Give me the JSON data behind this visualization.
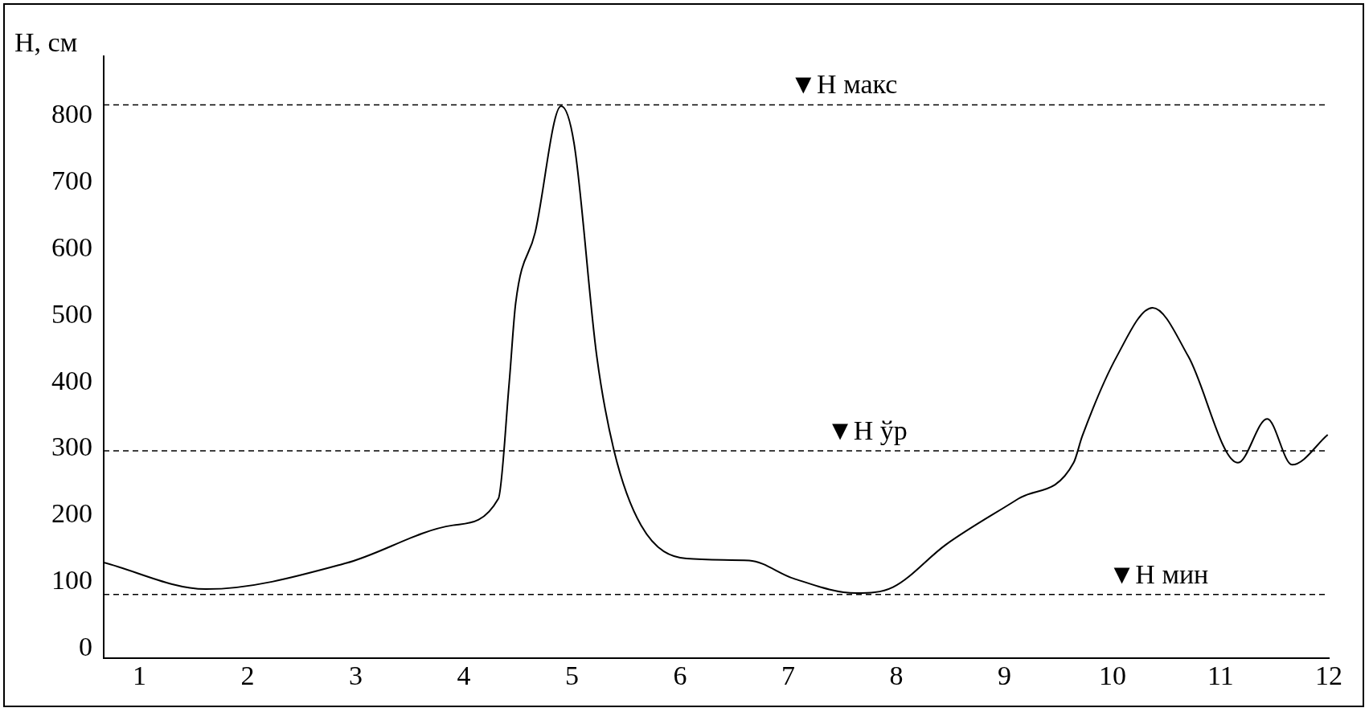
{
  "chart_data": {
    "type": "line",
    "ylabel": "Н, см",
    "x": [
      0.67,
      1.62,
      2.91,
      3.9,
      4.32,
      4.42,
      4.48,
      4.66,
      4.9,
      5.02,
      5.23,
      5.39,
      5.64,
      6.06,
      6.64,
      7.05,
      7.63,
      7.97,
      8.46,
      9.13,
      9.64,
      9.72,
      10.04,
      10.37,
      10.7,
      11.16,
      11.43,
      11.66,
      11.99
    ],
    "series": [
      {
        "color": "#000000",
        "values": [
          129,
          89,
          128,
          185,
          225,
          399,
          519,
          625,
          815,
          759,
          439,
          297,
          185,
          135,
          132,
          105,
          83,
          92,
          156,
          225,
          279,
          319,
          439,
          512,
          439,
          279,
          345,
          276,
          321
        ]
      }
    ],
    "xlim": [
      0.67,
      12
    ],
    "xticks": [
      1,
      2,
      3,
      4,
      5,
      6,
      7,
      8,
      9,
      10,
      11,
      12
    ],
    "ylim": [
      -15,
      890
    ],
    "yticks": [
      0,
      100,
      200,
      300,
      400,
      500,
      600,
      700,
      800
    ],
    "grid": false,
    "marker": "none",
    "line_style": "solid",
    "ref_lines": [
      {
        "axis": "y",
        "value": 817,
        "label": "▼Н макс",
        "color": "#000000",
        "line_style": "dashed"
      },
      {
        "axis": "y",
        "value": 297,
        "label": "▼Н ўр",
        "color": "#000000",
        "line_style": "dashed"
      },
      {
        "axis": "y",
        "value": 81,
        "label": "▼Н мин",
        "color": "#000000",
        "line_style": "dashed"
      }
    ]
  }
}
